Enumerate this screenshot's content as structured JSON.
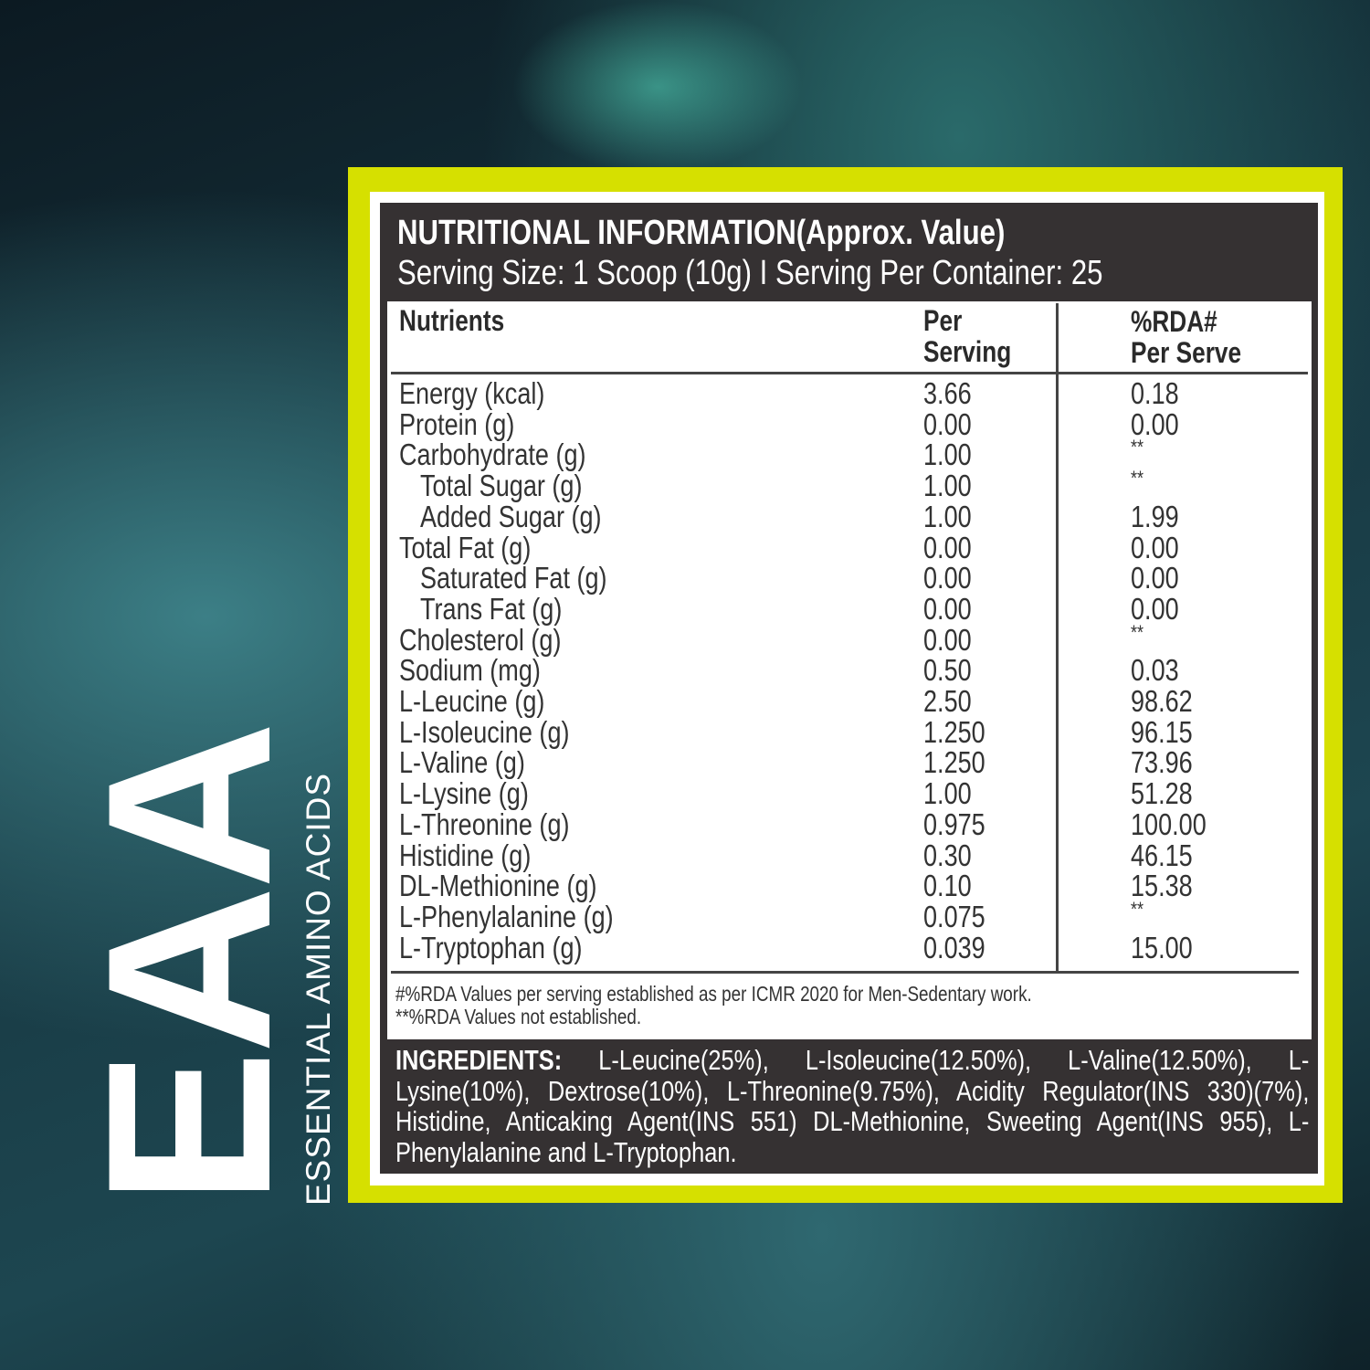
{
  "brand": {
    "logo_text": "EAA",
    "subtitle": "ESSENTIAL AMINO ACIDS",
    "accent_color": "#d6e000",
    "panel_color": "#353132"
  },
  "label": {
    "title": "NUTRITIONAL INFORMATION(Approx. Value)",
    "serving": "Serving Size: 1 Scoop (10g)  I  Serving Per Container: 25",
    "headers": {
      "nutrients": "Nutrients",
      "per_serving_1": "Per",
      "per_serving_2": "Serving",
      "rda_1": "%RDA#",
      "rda_2": "Per Serve"
    },
    "rows": [
      {
        "name": "Energy (kcal)",
        "value": "3.66",
        "rda": "0.18",
        "indent": false
      },
      {
        "name": "Protein (g)",
        "value": "0.00",
        "rda": "0.00",
        "indent": false
      },
      {
        "name": "Carbohydrate (g)",
        "value": "1.00",
        "rda": "**",
        "indent": false
      },
      {
        "name": "Total Sugar (g)",
        "value": "1.00",
        "rda": "**",
        "indent": true
      },
      {
        "name": "Added Sugar (g)",
        "value": "1.00",
        "rda": "1.99",
        "indent": true
      },
      {
        "name": "Total Fat (g)",
        "value": "0.00",
        "rda": "0.00",
        "indent": false
      },
      {
        "name": "Saturated Fat (g)",
        "value": "0.00",
        "rda": "0.00",
        "indent": true
      },
      {
        "name": "Trans Fat (g)",
        "value": "0.00",
        "rda": "0.00",
        "indent": true
      },
      {
        "name": "Cholesterol (g)",
        "value": "0.00",
        "rda": "**",
        "indent": false
      },
      {
        "name": "Sodium (mg)",
        "value": "0.50",
        "rda": "0.03",
        "indent": false
      },
      {
        "name": "L-Leucine (g)",
        "value": "2.50",
        "rda": "98.62",
        "indent": false
      },
      {
        "name": "L-Isoleucine (g)",
        "value": "1.250",
        "rda": "96.15",
        "indent": false
      },
      {
        "name": "L-Valine (g)",
        "value": "1.250",
        "rda": "73.96",
        "indent": false
      },
      {
        "name": "L-Lysine (g)",
        "value": "1.00",
        "rda": "51.28",
        "indent": false
      },
      {
        "name": "L-Threonine (g)",
        "value": "0.975",
        "rda": "100.00",
        "indent": false
      },
      {
        "name": "Histidine (g)",
        "value": "0.30",
        "rda": "46.15",
        "indent": false
      },
      {
        "name": "DL-Methionine (g)",
        "value": "0.10",
        "rda": "15.38",
        "indent": false
      },
      {
        "name": "L-Phenylalanine (g)",
        "value": "0.075",
        "rda": "**",
        "indent": false
      },
      {
        "name": "L-Tryptophan (g)",
        "value": "0.039",
        "rda": "15.00",
        "indent": false
      }
    ],
    "footnotes": [
      "#%RDA Values per serving established as per ICMR 2020 for Men-Sedentary work.",
      "**%RDA Values not established."
    ],
    "ingredients_label": "INGREDIENTS:",
    "ingredients_lines": [
      " L-Leucine(25%), L-Isoleucine(12.50%), L-Valine(12.50%), L-",
      "Lysine(10%), Dextrose(10%), L-Threonine(9.75%), Acidity Regulator(INS 330)(7%),",
      "Histidine, Anticaking Agent(INS 551) DL-Methionine, Sweeting Agent(INS 955), L-",
      "Phenylalanine and L-Tryptophan."
    ]
  }
}
